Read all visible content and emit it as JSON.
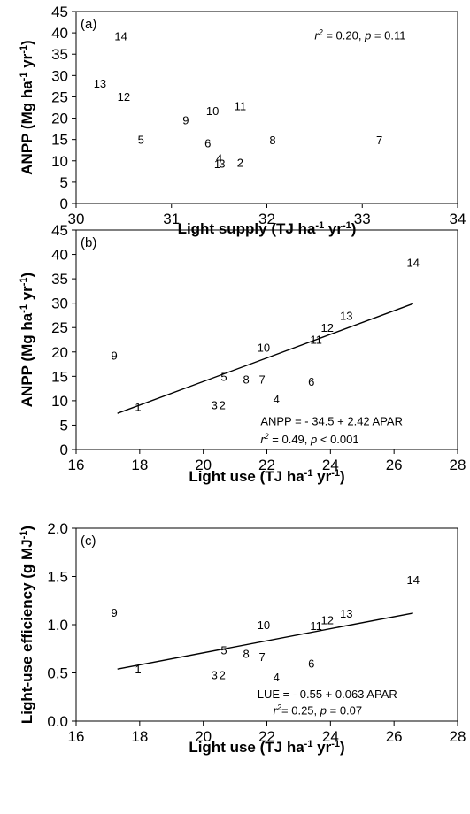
{
  "chart_data": [
    {
      "type": "scatter",
      "panel_label": "(a)",
      "xlabel": {
        "text": "Light supply (TJ ha",
        "sup1": "-1",
        "mid": " yr",
        "sup2": "-1",
        "end": ")"
      },
      "ylabel": {
        "text": "ANPP (Mg ha",
        "sup1": "-1",
        "mid": " yr",
        "sup2": "-1",
        "end": ")"
      },
      "xlim": [
        30,
        34
      ],
      "ylim": [
        0,
        45
      ],
      "xticks": [
        "30",
        "31",
        "32",
        "33",
        "34"
      ],
      "yticks": [
        "0",
        "5",
        "10",
        "15",
        "20",
        "25",
        "30",
        "35",
        "40",
        "45"
      ],
      "points": [
        {
          "label": "14",
          "x": 30.47,
          "y": 39.3
        },
        {
          "label": "13",
          "x": 30.25,
          "y": 28.2
        },
        {
          "label": "12",
          "x": 30.5,
          "y": 25.1
        },
        {
          "label": "5",
          "x": 30.68,
          "y": 15.0
        },
        {
          "label": "9",
          "x": 31.15,
          "y": 19.6
        },
        {
          "label": "10",
          "x": 31.43,
          "y": 21.8
        },
        {
          "label": "11",
          "x": 31.72,
          "y": 22.9
        },
        {
          "label": "6",
          "x": 31.38,
          "y": 14.2
        },
        {
          "label": "8",
          "x": 32.06,
          "y": 14.9
        },
        {
          "label": "7",
          "x": 33.18,
          "y": 14.9
        },
        {
          "label": "4",
          "x": 31.5,
          "y": 10.7
        },
        {
          "label": "1",
          "x": 31.48,
          "y": 9.3
        },
        {
          "label": "3",
          "x": 31.53,
          "y": 9.4
        },
        {
          "label": "2",
          "x": 31.72,
          "y": 9.6
        }
      ],
      "annotations": [
        {
          "id": "stats",
          "parts": [
            {
              "t": "r",
              "i": true
            },
            {
              "t": "2",
              "sup": true,
              "i": true
            },
            {
              "t": " = 0.20, "
            },
            {
              "t": "p",
              "i": true
            },
            {
              "t": " = 0.11"
            }
          ],
          "x": 32.5,
          "y": 38.5
        }
      ]
    },
    {
      "type": "scatter",
      "panel_label": "(b)",
      "xlabel": {
        "text": "Light use (TJ ha",
        "sup1": "-1",
        "mid": " yr",
        "sup2": "-1",
        "end": ")"
      },
      "ylabel": {
        "text": "ANPP (Mg ha",
        "sup1": "-1",
        "mid": " yr",
        "sup2": "-1",
        "end": ")"
      },
      "xlim": [
        16,
        28
      ],
      "ylim": [
        0,
        45
      ],
      "xticks": [
        "16",
        "18",
        "20",
        "22",
        "24",
        "26",
        "28"
      ],
      "yticks": [
        "0",
        "5",
        "10",
        "15",
        "20",
        "25",
        "30",
        "35",
        "40",
        "45"
      ],
      "points": [
        {
          "label": "14",
          "x": 26.6,
          "y": 38.4
        },
        {
          "label": "13",
          "x": 24.5,
          "y": 27.5
        },
        {
          "label": "12",
          "x": 23.9,
          "y": 25.0
        },
        {
          "label": "11",
          "x": 23.55,
          "y": 22.6
        },
        {
          "label": "10",
          "x": 21.9,
          "y": 21.0
        },
        {
          "label": "9",
          "x": 17.2,
          "y": 19.3
        },
        {
          "label": "5",
          "x": 20.65,
          "y": 15.0
        },
        {
          "label": "8",
          "x": 21.35,
          "y": 14.4
        },
        {
          "label": "7",
          "x": 21.85,
          "y": 14.4
        },
        {
          "label": "6",
          "x": 23.4,
          "y": 14.0
        },
        {
          "label": "4",
          "x": 22.3,
          "y": 10.3
        },
        {
          "label": "1",
          "x": 17.95,
          "y": 8.8
        },
        {
          "label": "3",
          "x": 20.35,
          "y": 9.2
        },
        {
          "label": "2",
          "x": 20.6,
          "y": 9.2
        }
      ],
      "fit_line": {
        "x": [
          17.3,
          26.6
        ],
        "y": [
          7.4,
          29.9
        ]
      },
      "annotations": [
        {
          "id": "eq",
          "parts": [
            {
              "t": "ANPP = - 34.5 + 2.42 APAR"
            }
          ],
          "x": 21.8,
          "y": 5.0
        },
        {
          "id": "stats",
          "parts": [
            {
              "t": "r",
              "i": true
            },
            {
              "t": "2",
              "sup": true,
              "i": true
            },
            {
              "t": " = 0.49, "
            },
            {
              "t": "p",
              "i": true
            },
            {
              "t": " < 0.001"
            }
          ],
          "x": 21.8,
          "y": 1.3
        }
      ]
    },
    {
      "type": "scatter",
      "panel_label": "(c)",
      "xlabel": {
        "text": "Light use (TJ ha",
        "sup1": "-1",
        "mid": " yr",
        "sup2": "-1",
        "end": ")"
      },
      "ylabel": {
        "text": "Light-use efficiency (g MJ",
        "sup1": "-1",
        "mid": "",
        "sup2": "",
        "end": ")"
      },
      "xlim": [
        16,
        28
      ],
      "ylim": [
        0,
        2.0
      ],
      "xticks": [
        "16",
        "18",
        "20",
        "22",
        "24",
        "26",
        "28"
      ],
      "yticks": [
        "0.0",
        "0.5",
        "1.0",
        "1.5",
        "2.0"
      ],
      "points": [
        {
          "label": "14",
          "x": 26.6,
          "y": 1.47
        },
        {
          "label": "13",
          "x": 24.5,
          "y": 1.12
        },
        {
          "label": "12",
          "x": 23.9,
          "y": 1.05
        },
        {
          "label": "11",
          "x": 23.55,
          "y": 0.99
        },
        {
          "label": "10",
          "x": 21.9,
          "y": 1.0
        },
        {
          "label": "9",
          "x": 17.2,
          "y": 1.13
        },
        {
          "label": "5",
          "x": 20.65,
          "y": 0.74
        },
        {
          "label": "8",
          "x": 21.35,
          "y": 0.7
        },
        {
          "label": "7",
          "x": 21.85,
          "y": 0.67
        },
        {
          "label": "6",
          "x": 23.4,
          "y": 0.6
        },
        {
          "label": "4",
          "x": 22.3,
          "y": 0.46
        },
        {
          "label": "1",
          "x": 17.95,
          "y": 0.54
        },
        {
          "label": "3",
          "x": 20.35,
          "y": 0.48
        },
        {
          "label": "2",
          "x": 20.6,
          "y": 0.48
        }
      ],
      "fit_line": {
        "x": [
          17.3,
          26.6
        ],
        "y": [
          0.54,
          1.12
        ]
      },
      "annotations": [
        {
          "id": "eq",
          "parts": [
            {
              "t": "LUE = - 0.55 + 0.063 APAR"
            }
          ],
          "x": 21.7,
          "y": 0.24
        },
        {
          "id": "stats",
          "parts": [
            {
              "t": "r",
              "i": true
            },
            {
              "t": "2",
              "sup": true,
              "i": true
            },
            {
              "t": "= 0.25, "
            },
            {
              "t": "p",
              "i": true
            },
            {
              "t": " = 0.07"
            }
          ],
          "x": 22.2,
          "y": 0.07
        }
      ]
    }
  ]
}
